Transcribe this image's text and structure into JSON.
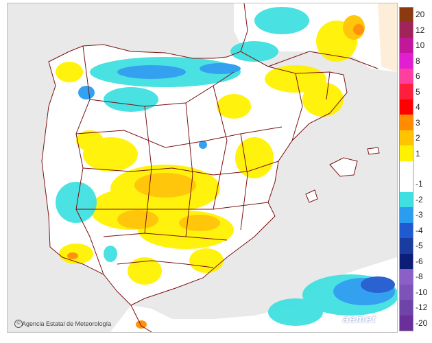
{
  "credit": {
    "logo": "aemet-seal-icon",
    "text": "Agencia Estatal de Meteorología"
  },
  "brand": {
    "text": "aemet"
  },
  "legend": {
    "items": [
      {
        "label": "20",
        "color": "#8b3a0f"
      },
      {
        "label": "12",
        "color": "#a0245a"
      },
      {
        "label": "10",
        "color": "#c2179a"
      },
      {
        "label": "8",
        "color": "#e01ed2"
      },
      {
        "label": "6",
        "color": "#ff3fa0"
      },
      {
        "label": "5",
        "color": "#ff1e3c"
      },
      {
        "label": "4",
        "color": "#ff0000"
      },
      {
        "label": "3",
        "color": "#ff8c00"
      },
      {
        "label": "2",
        "color": "#ffc400"
      },
      {
        "label": "1",
        "color": "#fff200"
      },
      {
        "label": "",
        "color": "#ffffff"
      },
      {
        "label": "-1",
        "color": "#ffffff"
      },
      {
        "label": "-2",
        "color": "#40e0e0"
      },
      {
        "label": "-3",
        "color": "#2a9df0"
      },
      {
        "label": "-4",
        "color": "#1f5ad0"
      },
      {
        "label": "-5",
        "color": "#1a3ca0"
      },
      {
        "label": "-6",
        "color": "#0d1e78"
      },
      {
        "label": "-8",
        "color": "#8a60c8"
      },
      {
        "label": "-10",
        "color": "#7c54b8"
      },
      {
        "label": "-12",
        "color": "#6e44a8"
      },
      {
        "label": "-20",
        "color": "#6a2f9a"
      }
    ]
  },
  "map": {
    "colors": {
      "sea": "#e9e9e9",
      "land": "#ffffff",
      "border": "#7a0f0f",
      "france": "#fdeed9"
    }
  }
}
